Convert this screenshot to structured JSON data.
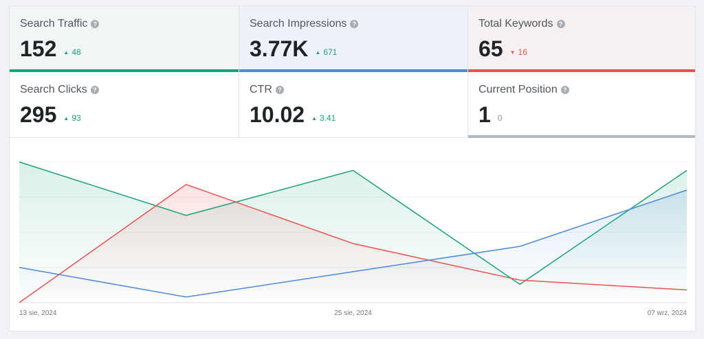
{
  "stats": [
    {
      "label": "Search Traffic",
      "value": "152",
      "delta": "48",
      "direction": "up",
      "color": "#1ba27a",
      "bg": "#f0f6f4",
      "bar": true
    },
    {
      "label": "Search Impressions",
      "value": "3.77K",
      "delta": "671",
      "direction": "up",
      "color": "#4a8ad8",
      "bg": "#eef1f7",
      "bar": true
    },
    {
      "label": "Total Keywords",
      "value": "65",
      "delta": "16",
      "direction": "down",
      "color": "#e8524f",
      "bg": "#f7f0f1",
      "bar": true
    },
    {
      "label": "Search Clicks",
      "value": "295",
      "delta": "93",
      "direction": "up",
      "color": "#1ba27a",
      "bg": "#ffffff",
      "bar": false
    },
    {
      "label": "CTR",
      "value": "10.02",
      "delta": "3.41",
      "direction": "up",
      "color": "#1ba27a",
      "bg": "#ffffff",
      "bar": false
    },
    {
      "label": "Current Position",
      "value": "1",
      "delta": "0",
      "direction": "none",
      "color": "#b3b8c3",
      "bg": "#ffffff",
      "bar": true
    }
  ],
  "colors": {
    "up": "#1ba27a",
    "down": "#e8524f",
    "neutral": "#8c8f94",
    "traffic": "#1ba27a",
    "impressions": "#4a8ad8",
    "keywords": "#e8524f"
  },
  "icons": {
    "help": "help-icon",
    "up": "triangle-up-icon",
    "down": "triangle-down-icon"
  },
  "chart_data": {
    "type": "area",
    "x": [
      "13 sie, 2024",
      "",
      "25 sie, 2024",
      "",
      "07 wrz, 2024"
    ],
    "tick_labels": [
      "13 sie, 2024",
      "25 sie, 2024",
      "07 wrz, 2024"
    ],
    "grid": true,
    "ylim": [
      0,
      100
    ],
    "series": [
      {
        "key": "traffic",
        "values": [
          100,
          62,
          94,
          13,
          94
        ]
      },
      {
        "key": "keywords",
        "values": [
          0,
          84,
          42,
          16,
          9
        ]
      },
      {
        "key": "impressions",
        "values": [
          25,
          4,
          22,
          40,
          80
        ]
      }
    ]
  }
}
